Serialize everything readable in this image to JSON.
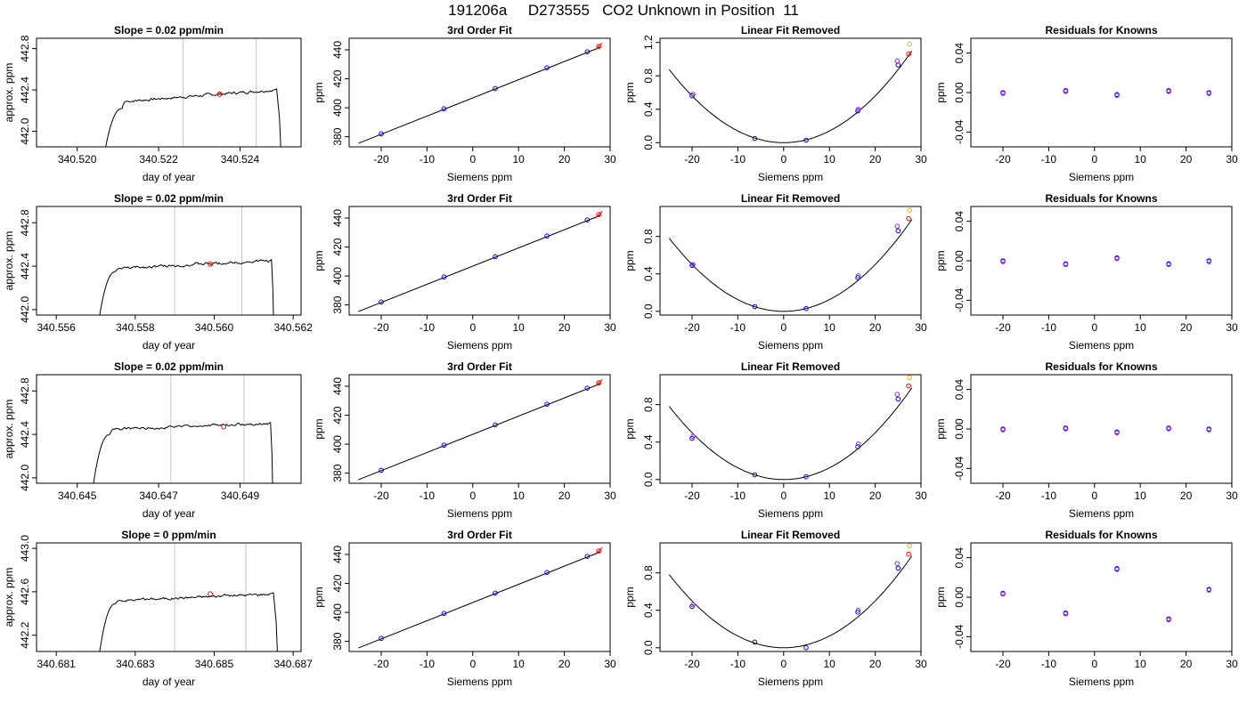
{
  "title": "191206a     D273555   CO2 Unknown in Position  11",
  "chart_data": [
    {
      "row": 0,
      "col": 0,
      "type": "line",
      "title": "Slope =  0.02  ppm/min",
      "xlabel": "day of year",
      "ylabel": "approx. ppm",
      "xlim": [
        340.519,
        340.5255
      ],
      "ylim": [
        441.85,
        442.9
      ],
      "xticks": [
        340.52,
        340.522,
        340.524
      ],
      "xtick_labels": [
        "340.520",
        "340.522",
        "340.524"
      ],
      "yticks": [
        442.0,
        442.4,
        442.8
      ],
      "ytick_labels": [
        "442.0",
        "442.4",
        "442.8"
      ],
      "vlines": [
        340.5226,
        340.5244
      ],
      "marker": {
        "x": 340.5235,
        "y": 442.36,
        "color": "#ff0000"
      },
      "trace_start": [
        340.5207,
        441.85
      ],
      "trace_rise_end": [
        340.5211,
        442.22
      ],
      "trace_plateau_start": [
        340.5212,
        442.29
      ],
      "trace_plateau_end": [
        340.5248,
        442.4
      ],
      "trace_end": [
        340.525,
        441.85
      ]
    },
    {
      "row": 0,
      "col": 1,
      "type": "scatter",
      "title": "3rd Order Fit",
      "xlabel": "Siemens ppm",
      "ylabel": "ppm",
      "xlim": [
        -27,
        30
      ],
      "ylim": [
        373,
        448
      ],
      "xticks": [
        -20,
        -10,
        0,
        10,
        20,
        30
      ],
      "yticks": [
        380,
        400,
        420,
        440
      ],
      "points": [
        [
          -20.0,
          382.0
        ],
        [
          -6.3,
          399.3
        ],
        [
          4.9,
          413.3
        ],
        [
          16.2,
          427.6
        ],
        [
          25.0,
          438.7
        ]
      ],
      "point_color": "#0000ff",
      "extra_points": [
        {
          "x": 27.5,
          "y": 442.4,
          "color": "#ff0000"
        }
      ],
      "line": [
        [
          -25,
          375.4
        ],
        [
          28,
          442.0
        ]
      ]
    },
    {
      "row": 0,
      "col": 2,
      "type": "scatter",
      "title": "Linear Fit Removed",
      "xlabel": "Siemens ppm",
      "ylabel": "ppm",
      "xlim": [
        -27,
        30
      ],
      "ylim": [
        -0.05,
        1.25
      ],
      "xticks": [
        -20,
        -10,
        0,
        10,
        20,
        30
      ],
      "yticks": [
        0.0,
        0.4,
        0.8,
        1.2
      ],
      "ytick_labels": [
        "0.0",
        "0.4",
        "0.8",
        "1.2"
      ],
      "curve_a": 0.0014,
      "points": [
        [
          -20.0,
          0.56
        ],
        [
          -6.3,
          0.05
        ],
        [
          4.9,
          0.03
        ],
        [
          16.2,
          0.38
        ],
        [
          25.0,
          0.93
        ]
      ],
      "point_color": "#0000ff",
      "extra_points": [
        {
          "x": 16.3,
          "y": 0.4,
          "color": "#a020f0"
        },
        {
          "x": -19.8,
          "y": 0.58,
          "color": "#a020f0"
        },
        {
          "x": 24.8,
          "y": 0.98,
          "color": "#a020f0"
        },
        {
          "x": 27.3,
          "y": 1.06,
          "color": "#ff0000"
        },
        {
          "x": 27.5,
          "y": 1.18,
          "color": "#ffa500"
        }
      ]
    },
    {
      "row": 0,
      "col": 3,
      "type": "scatter",
      "title": "Residuals for Knowns",
      "xlabel": "Siemens ppm",
      "ylabel": "ppm",
      "xlim": [
        -27,
        30
      ],
      "ylim": [
        -0.055,
        0.055
      ],
      "xticks": [
        -20,
        -10,
        0,
        10,
        20,
        30
      ],
      "yticks": [
        -0.04,
        0.0,
        0.04
      ],
      "ytick_labels": [
        "-0.04",
        "0.00",
        "0.04"
      ],
      "points": [
        [
          -20.0,
          0.0
        ],
        [
          -6.3,
          0.002
        ],
        [
          4.9,
          -0.002
        ],
        [
          16.2,
          0.002
        ],
        [
          25.0,
          0.0
        ]
      ],
      "point_color": "#0000ff",
      "extra_points": []
    },
    {
      "row": 1,
      "col": 0,
      "type": "line",
      "title": "Slope =  0.02  ppm/min",
      "xlabel": "day of year",
      "ylabel": "approx. ppm",
      "xlim": [
        340.5555,
        340.5622
      ],
      "ylim": [
        441.95,
        442.95
      ],
      "xticks": [
        340.556,
        340.558,
        340.56,
        340.562
      ],
      "xtick_labels": [
        "340.556",
        "340.558",
        "340.560",
        "340.562"
      ],
      "yticks": [
        442.0,
        442.4,
        442.8
      ],
      "ytick_labels": [
        "442.0",
        "442.4",
        "442.8"
      ],
      "vlines": [
        340.559,
        340.5607
      ],
      "marker": {
        "x": 340.5599,
        "y": 442.42,
        "color": "#ff0000"
      },
      "trace_start": [
        340.5571,
        441.95
      ],
      "trace_rise_end": [
        340.5575,
        442.35
      ],
      "trace_plateau_start": [
        340.5576,
        442.38
      ],
      "trace_plateau_end": [
        340.5614,
        442.45
      ],
      "trace_end": [
        340.5615,
        441.95
      ]
    },
    {
      "row": 1,
      "col": 1,
      "type": "scatter",
      "title": "3rd Order Fit",
      "xlabel": "Siemens ppm",
      "ylabel": "ppm",
      "xlim": [
        -27,
        30
      ],
      "ylim": [
        373,
        448
      ],
      "xticks": [
        -20,
        -10,
        0,
        10,
        20,
        30
      ],
      "yticks": [
        380,
        400,
        420,
        440
      ],
      "points": [
        [
          -20.0,
          382.0
        ],
        [
          -6.3,
          399.3
        ],
        [
          4.9,
          413.3
        ],
        [
          16.2,
          427.6
        ],
        [
          25.0,
          438.7
        ]
      ],
      "point_color": "#0000ff",
      "extra_points": [
        {
          "x": 27.5,
          "y": 442.4,
          "color": "#ff0000"
        }
      ],
      "line": [
        [
          -25,
          375.4
        ],
        [
          28,
          442.0
        ]
      ]
    },
    {
      "row": 1,
      "col": 2,
      "type": "scatter",
      "title": "Linear Fit Removed",
      "xlabel": "Siemens ppm",
      "ylabel": "ppm",
      "xlim": [
        -27,
        30
      ],
      "ylim": [
        -0.04,
        1.12
      ],
      "xticks": [
        -20,
        -10,
        0,
        10,
        20,
        30
      ],
      "yticks": [
        0.0,
        0.4,
        0.8
      ],
      "ytick_labels": [
        "0.0",
        "0.4",
        "0.8"
      ],
      "curve_a": 0.00125,
      "points": [
        [
          -20.0,
          0.49
        ],
        [
          -6.3,
          0.05
        ],
        [
          4.9,
          0.03
        ],
        [
          16.2,
          0.36
        ],
        [
          25.0,
          0.86
        ]
      ],
      "point_color": "#0000ff",
      "extra_points": [
        {
          "x": 16.3,
          "y": 0.38,
          "color": "#a020f0"
        },
        {
          "x": -19.8,
          "y": 0.5,
          "color": "#a020f0"
        },
        {
          "x": 24.8,
          "y": 0.91,
          "color": "#a020f0"
        },
        {
          "x": 27.3,
          "y": 0.99,
          "color": "#ff0000"
        },
        {
          "x": 27.5,
          "y": 1.08,
          "color": "#ffa500"
        }
      ]
    },
    {
      "row": 1,
      "col": 3,
      "type": "scatter",
      "title": "Residuals for Knowns",
      "xlabel": "Siemens ppm",
      "ylabel": "ppm",
      "xlim": [
        -27,
        30
      ],
      "ylim": [
        -0.055,
        0.055
      ],
      "xticks": [
        -20,
        -10,
        0,
        10,
        20,
        30
      ],
      "yticks": [
        -0.04,
        0.0,
        0.04
      ],
      "ytick_labels": [
        "-0.04",
        "0.00",
        "0.04"
      ],
      "points": [
        [
          -20.0,
          0.0
        ],
        [
          -6.3,
          -0.003
        ],
        [
          4.9,
          0.003
        ],
        [
          16.2,
          -0.003
        ],
        [
          25.0,
          0.0
        ]
      ],
      "point_color": "#0000ff",
      "extra_points": []
    },
    {
      "row": 2,
      "col": 0,
      "type": "line",
      "title": "Slope =  0.02  ppm/min",
      "xlabel": "day of year",
      "ylabel": "approx. ppm",
      "xlim": [
        340.644,
        340.6505
      ],
      "ylim": [
        441.95,
        442.95
      ],
      "xticks": [
        340.645,
        340.647,
        340.649
      ],
      "xtick_labels": [
        "340.645",
        "340.647",
        "340.649"
      ],
      "yticks": [
        442.0,
        442.4,
        442.8
      ],
      "ytick_labels": [
        "442.0",
        "442.4",
        "442.8"
      ],
      "vlines": [
        340.6473,
        340.6491
      ],
      "marker": {
        "x": 340.6486,
        "y": 442.47,
        "color": "#ff0000"
      },
      "trace_start": [
        340.6454,
        441.95
      ],
      "trace_rise_end": [
        340.6458,
        442.4
      ],
      "trace_plateau_start": [
        340.6459,
        442.45
      ],
      "trace_plateau_end": [
        340.6497,
        442.5
      ],
      "trace_end": [
        340.6498,
        441.95
      ]
    },
    {
      "row": 2,
      "col": 1,
      "type": "scatter",
      "title": "3rd Order Fit",
      "xlabel": "Siemens ppm",
      "ylabel": "ppm",
      "xlim": [
        -27,
        30
      ],
      "ylim": [
        373,
        448
      ],
      "xticks": [
        -20,
        -10,
        0,
        10,
        20,
        30
      ],
      "yticks": [
        380,
        400,
        420,
        440
      ],
      "points": [
        [
          -20.0,
          382.0
        ],
        [
          -6.3,
          399.3
        ],
        [
          4.9,
          413.3
        ],
        [
          16.2,
          427.6
        ],
        [
          25.0,
          438.7
        ]
      ],
      "point_color": "#0000ff",
      "extra_points": [
        {
          "x": 27.5,
          "y": 442.4,
          "color": "#ff0000"
        }
      ],
      "line": [
        [
          -25,
          375.4
        ],
        [
          28,
          442.0
        ]
      ]
    },
    {
      "row": 2,
      "col": 2,
      "type": "scatter",
      "title": "Linear Fit Removed",
      "xlabel": "Siemens ppm",
      "ylabel": "ppm",
      "xlim": [
        -27,
        30
      ],
      "ylim": [
        -0.04,
        1.12
      ],
      "xticks": [
        -20,
        -10,
        0,
        10,
        20,
        30
      ],
      "yticks": [
        0.0,
        0.4,
        0.8
      ],
      "ytick_labels": [
        "0.0",
        "0.4",
        "0.8"
      ],
      "curve_a": 0.00125,
      "points": [
        [
          -20.0,
          0.44
        ],
        [
          -6.3,
          0.05
        ],
        [
          4.9,
          0.03
        ],
        [
          16.2,
          0.35
        ],
        [
          25.0,
          0.86
        ]
      ],
      "point_color": "#0000ff",
      "extra_points": [
        {
          "x": 16.3,
          "y": 0.38,
          "color": "#a020f0"
        },
        {
          "x": -19.8,
          "y": 0.46,
          "color": "#a020f0"
        },
        {
          "x": 24.8,
          "y": 0.91,
          "color": "#a020f0"
        },
        {
          "x": 27.3,
          "y": 1.0,
          "color": "#ff0000"
        },
        {
          "x": 27.5,
          "y": 1.09,
          "color": "#ffa500"
        }
      ]
    },
    {
      "row": 2,
      "col": 3,
      "type": "scatter",
      "title": "Residuals for Knowns",
      "xlabel": "Siemens ppm",
      "ylabel": "ppm",
      "xlim": [
        -27,
        30
      ],
      "ylim": [
        -0.055,
        0.055
      ],
      "xticks": [
        -20,
        -10,
        0,
        10,
        20,
        30
      ],
      "yticks": [
        -0.04,
        0.0,
        0.04
      ],
      "ytick_labels": [
        "-0.04",
        "0.00",
        "0.04"
      ],
      "points": [
        [
          -20.0,
          0.0
        ],
        [
          -6.3,
          0.001
        ],
        [
          4.9,
          -0.003
        ],
        [
          16.2,
          0.001
        ],
        [
          25.0,
          0.0
        ]
      ],
      "point_color": "#0000ff",
      "extra_points": []
    },
    {
      "row": 3,
      "col": 0,
      "type": "line",
      "title": "Slope =  0  ppm/min",
      "xlabel": "day of year",
      "ylabel": "approx. ppm",
      "xlim": [
        340.6805,
        340.6872
      ],
      "ylim": [
        442.05,
        443.05
      ],
      "xticks": [
        340.681,
        340.683,
        340.685,
        340.687
      ],
      "xtick_labels": [
        "340.681",
        "340.683",
        "340.685",
        "340.687"
      ],
      "yticks": [
        442.2,
        442.6,
        443.0
      ],
      "ytick_labels": [
        "442.2",
        "442.6",
        "443.0"
      ],
      "vlines": [
        340.684,
        340.6858
      ],
      "marker": {
        "x": 340.6849,
        "y": 442.58,
        "color": "#ff0000"
      },
      "trace_start": [
        340.6821,
        442.05
      ],
      "trace_rise_end": [
        340.6825,
        442.49
      ],
      "trace_plateau_start": [
        340.6826,
        442.52
      ],
      "trace_plateau_end": [
        340.6864,
        442.58
      ],
      "trace_end": [
        340.6866,
        442.05
      ]
    },
    {
      "row": 3,
      "col": 1,
      "type": "scatter",
      "title": "3rd Order Fit",
      "xlabel": "Siemens ppm",
      "ylabel": "ppm",
      "xlim": [
        -27,
        30
      ],
      "ylim": [
        373,
        448
      ],
      "xticks": [
        -20,
        -10,
        0,
        10,
        20,
        30
      ],
      "yticks": [
        380,
        400,
        420,
        440
      ],
      "points": [
        [
          -20.0,
          382.0
        ],
        [
          -6.3,
          399.3
        ],
        [
          4.9,
          413.3
        ],
        [
          16.2,
          427.6
        ],
        [
          25.0,
          438.7
        ]
      ],
      "point_color": "#0000ff",
      "extra_points": [
        {
          "x": 27.5,
          "y": 442.4,
          "color": "#ff0000"
        }
      ],
      "line": [
        [
          -25,
          375.4
        ],
        [
          28,
          442.0
        ]
      ]
    },
    {
      "row": 3,
      "col": 2,
      "type": "scatter",
      "title": "Linear Fit Removed",
      "xlabel": "Siemens ppm",
      "ylabel": "ppm",
      "xlim": [
        -27,
        30
      ],
      "ylim": [
        -0.04,
        1.12
      ],
      "xticks": [
        -20,
        -10,
        0,
        10,
        20,
        30
      ],
      "yticks": [
        0.0,
        0.4,
        0.8
      ],
      "ytick_labels": [
        "0.0",
        "0.4",
        "0.8"
      ],
      "curve_a": 0.00125,
      "points": [
        [
          -20.0,
          0.44
        ],
        [
          -6.3,
          0.06
        ],
        [
          4.9,
          0.0
        ],
        [
          16.2,
          0.38
        ],
        [
          25.0,
          0.85
        ]
      ],
      "point_color": "#0000ff",
      "extra_points": [
        {
          "x": 16.3,
          "y": 0.4,
          "color": "#a020f0"
        },
        {
          "x": -19.8,
          "y": 0.46,
          "color": "#a020f0"
        },
        {
          "x": 24.8,
          "y": 0.9,
          "color": "#a020f0"
        },
        {
          "x": 27.3,
          "y": 1.0,
          "color": "#ff0000"
        },
        {
          "x": 27.5,
          "y": 1.09,
          "color": "#ffa500"
        }
      ]
    },
    {
      "row": 3,
      "col": 3,
      "type": "scatter",
      "title": "Residuals for Knowns",
      "xlabel": "Siemens ppm",
      "ylabel": "ppm",
      "xlim": [
        -27,
        30
      ],
      "ylim": [
        -0.055,
        0.055
      ],
      "xticks": [
        -20,
        -10,
        0,
        10,
        20,
        30
      ],
      "yticks": [
        -0.04,
        0.0,
        0.04
      ],
      "ytick_labels": [
        "-0.04",
        "0.00",
        "0.04"
      ],
      "points": [
        [
          -20.0,
          0.004
        ],
        [
          -6.3,
          -0.016
        ],
        [
          4.9,
          0.029
        ],
        [
          16.2,
          -0.022
        ],
        [
          25.0,
          0.008
        ]
      ],
      "point_color": "#0000ff",
      "extra_points": []
    }
  ]
}
